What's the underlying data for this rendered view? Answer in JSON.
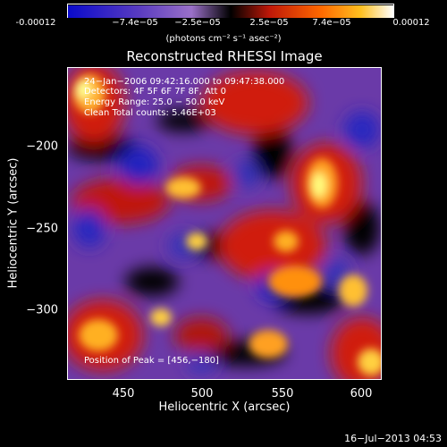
{
  "colorbar": {
    "ticks": [
      "-0.00012",
      "−7.4e−05",
      "−2.5e−05",
      "2.5e−05",
      "7.4e−05",
      "0.00012"
    ],
    "units": "(photons cm⁻² s⁻¹ asec⁻²)"
  },
  "title": "Reconstructed RHESSI Image",
  "annotations": {
    "time": "24−Jan−2006 09:42:16.000 to 09:47:38.000",
    "detectors": "Detectors: 4F 5F 6F 7F 8F, Att 0",
    "energy": "Energy Range: 25.0 − 50.0 keV",
    "clean": "Clean    Total counts: 5.46E+03",
    "peak": "Position of Peak = [456,−180]"
  },
  "axes": {
    "xlabel": "Heliocentric X (arcsec)",
    "ylabel": "Heliocentric Y (arcsec)",
    "xticks": [
      "450",
      "500",
      "550",
      "600"
    ],
    "yticks": [
      "−200",
      "−250",
      "−300"
    ]
  },
  "footer": "16−Jul−2013 04:53",
  "colors": {
    "negative_min": "#1010c8",
    "negative_mid": "#7a4ab8",
    "zero": "#000000",
    "positive_mid": "#e02010",
    "positive_max": "#ffffa0"
  }
}
